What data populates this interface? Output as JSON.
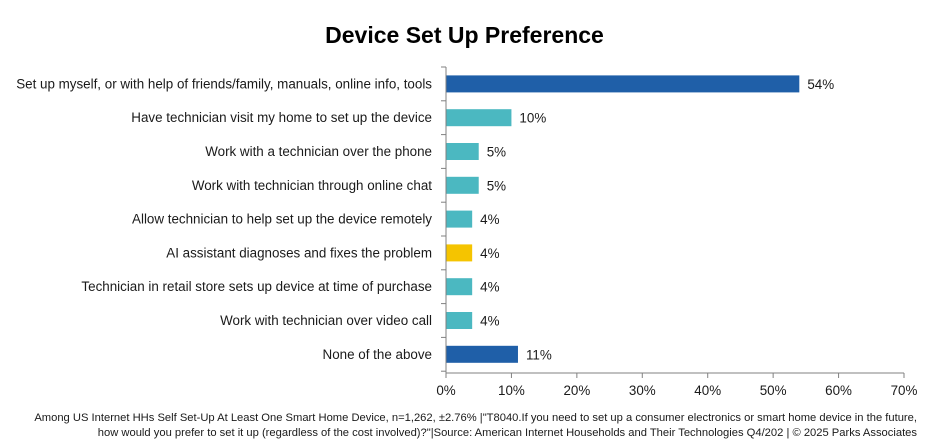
{
  "chart_data": {
    "type": "bar",
    "orientation": "horizontal",
    "title": "Device Set Up Preference",
    "categories": [
      "Set up myself, or with help of friends/family, manuals, online info, tools",
      "Have technician visit my home to set up the device",
      "Work with a technician over the phone",
      "Work with technician through online chat",
      "Allow technician to help set up the device remotely",
      "AI assistant diagnoses and fixes the problem",
      "Technician in retail store sets up device at time of purchase",
      "Work with technician over video call",
      "None of the above"
    ],
    "values": [
      54,
      10,
      5,
      5,
      4,
      4,
      4,
      4,
      11
    ],
    "value_labels": [
      "54%",
      "10%",
      "5%",
      "5%",
      "4%",
      "4%",
      "4%",
      "4%",
      "11%"
    ],
    "bar_colors": [
      "#1f5fa8",
      "#4bb8c1",
      "#4bb8c1",
      "#4bb8c1",
      "#4bb8c1",
      "#f5c400",
      "#4bb8c1",
      "#4bb8c1",
      "#1f5fa8"
    ],
    "xlim": [
      0,
      70
    ],
    "xticks": [
      0,
      10,
      20,
      30,
      40,
      50,
      60,
      70
    ],
    "xtick_labels": [
      "0%",
      "10%",
      "20%",
      "30%",
      "40%",
      "50%",
      "60%",
      "70%"
    ],
    "xlabel": "",
    "ylabel": "",
    "grid": false,
    "legend": "none"
  },
  "footnote": {
    "line1": "Among US Internet HHs Self Set-Up At Least One Smart Home Device, n=1,262, ±2.76% |\"T8040.If you need to set up a consumer electronics or smart home device in the future,",
    "line2": "how would you prefer to set it up (regardless of the cost involved)?\"|Source:  American Internet Households and Their Technologies Q4/202 | © 2025 Parks Associates"
  },
  "colors": {
    "dark_blue": "#1f5fa8",
    "teal": "#4bb8c1",
    "yellow": "#f5c400",
    "axis": "#808080"
  }
}
